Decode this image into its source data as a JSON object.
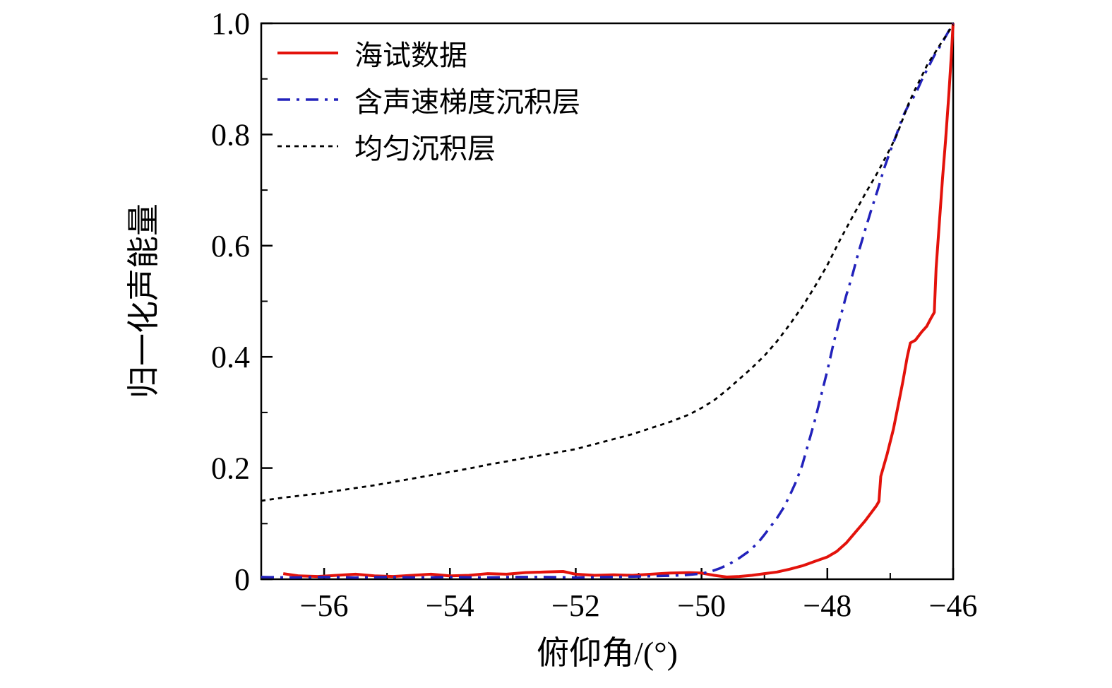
{
  "figure": {
    "background": "#ffffff",
    "axis_color": "#000000"
  },
  "chart_data": {
    "type": "line",
    "title": "",
    "xlabel": "俯仰角/(°)",
    "ylabel": "归一化声能量",
    "xlim": [
      -57,
      -46
    ],
    "ylim": [
      0,
      1
    ],
    "grid": false,
    "legend_position": "top-left",
    "x_ticks": [
      -56,
      -54,
      -52,
      -50,
      -48,
      -46
    ],
    "x_tick_labels": [
      "−56",
      "−54",
      "−52",
      "−50",
      "−48",
      "−46"
    ],
    "x_minor_ticks": [
      -57,
      -55,
      -53,
      -51,
      -49,
      -47
    ],
    "y_ticks": [
      0,
      0.2,
      0.4,
      0.6,
      0.8,
      1.0
    ],
    "y_tick_labels": [
      "0",
      "0.2",
      "0.4",
      "0.6",
      "0.8",
      "1.0"
    ],
    "y_minor_ticks": [
      0.1,
      0.3,
      0.5,
      0.7,
      0.9
    ],
    "series": [
      {
        "name": "海试数据",
        "color": "#e3120b",
        "style": "solid",
        "width": 4,
        "points": [
          [
            -56.65,
            0.01
          ],
          [
            -56.4,
            0.006
          ],
          [
            -56.1,
            0.005
          ],
          [
            -55.8,
            0.007
          ],
          [
            -55.5,
            0.009
          ],
          [
            -55.2,
            0.006
          ],
          [
            -54.9,
            0.005
          ],
          [
            -54.6,
            0.007
          ],
          [
            -54.3,
            0.009
          ],
          [
            -54.0,
            0.006
          ],
          [
            -53.7,
            0.007
          ],
          [
            -53.4,
            0.01
          ],
          [
            -53.1,
            0.009
          ],
          [
            -52.8,
            0.012
          ],
          [
            -52.5,
            0.013
          ],
          [
            -52.2,
            0.014
          ],
          [
            -52.0,
            0.009
          ],
          [
            -51.7,
            0.007
          ],
          [
            -51.4,
            0.008
          ],
          [
            -51.1,
            0.007
          ],
          [
            -50.8,
            0.009
          ],
          [
            -50.5,
            0.011
          ],
          [
            -50.2,
            0.012
          ],
          [
            -50.0,
            0.011
          ],
          [
            -49.8,
            0.007
          ],
          [
            -49.6,
            0.004
          ],
          [
            -49.4,
            0.005
          ],
          [
            -49.2,
            0.007
          ],
          [
            -49.0,
            0.01
          ],
          [
            -48.8,
            0.013
          ],
          [
            -48.6,
            0.018
          ],
          [
            -48.4,
            0.024
          ],
          [
            -48.2,
            0.032
          ],
          [
            -48.0,
            0.04
          ],
          [
            -47.85,
            0.05
          ],
          [
            -47.7,
            0.065
          ],
          [
            -47.55,
            0.085
          ],
          [
            -47.4,
            0.105
          ],
          [
            -47.3,
            0.12
          ],
          [
            -47.22,
            0.132
          ],
          [
            -47.18,
            0.14
          ],
          [
            -47.15,
            0.185
          ],
          [
            -47.05,
            0.225
          ],
          [
            -46.95,
            0.27
          ],
          [
            -46.87,
            0.315
          ],
          [
            -46.8,
            0.355
          ],
          [
            -46.73,
            0.4
          ],
          [
            -46.68,
            0.425
          ],
          [
            -46.6,
            0.43
          ],
          [
            -46.5,
            0.445
          ],
          [
            -46.42,
            0.455
          ],
          [
            -46.35,
            0.47
          ],
          [
            -46.3,
            0.48
          ],
          [
            -46.27,
            0.56
          ],
          [
            -46.22,
            0.64
          ],
          [
            -46.17,
            0.72
          ],
          [
            -46.12,
            0.79
          ],
          [
            -46.07,
            0.87
          ],
          [
            -46.03,
            0.94
          ],
          [
            -46.0,
            1.0
          ]
        ]
      },
      {
        "name": "含声速梯度沉积层",
        "color": "#2222bb",
        "style": "dashdot",
        "width": 3.5,
        "points": [
          [
            -57.0,
            0.004
          ],
          [
            -56.5,
            0.003
          ],
          [
            -56.0,
            0.004
          ],
          [
            -55.5,
            0.003
          ],
          [
            -55.0,
            0.004
          ],
          [
            -54.5,
            0.003
          ],
          [
            -54.0,
            0.004
          ],
          [
            -53.5,
            0.003
          ],
          [
            -53.0,
            0.004
          ],
          [
            -52.5,
            0.004
          ],
          [
            -52.0,
            0.003
          ],
          [
            -51.5,
            0.004
          ],
          [
            -51.0,
            0.005
          ],
          [
            -50.6,
            0.006
          ],
          [
            -50.3,
            0.007
          ],
          [
            -50.0,
            0.01
          ],
          [
            -49.85,
            0.014
          ],
          [
            -49.7,
            0.02
          ],
          [
            -49.55,
            0.028
          ],
          [
            -49.4,
            0.038
          ],
          [
            -49.25,
            0.05
          ],
          [
            -49.1,
            0.066
          ],
          [
            -49.0,
            0.08
          ],
          [
            -48.9,
            0.095
          ],
          [
            -48.8,
            0.11
          ],
          [
            -48.7,
            0.128
          ],
          [
            -48.6,
            0.15
          ],
          [
            -48.5,
            0.175
          ],
          [
            -48.4,
            0.205
          ],
          [
            -48.3,
            0.245
          ],
          [
            -48.2,
            0.285
          ],
          [
            -48.1,
            0.33
          ],
          [
            -48.0,
            0.375
          ],
          [
            -47.9,
            0.425
          ],
          [
            -47.8,
            0.468
          ],
          [
            -47.7,
            0.51
          ],
          [
            -47.6,
            0.548
          ],
          [
            -47.5,
            0.59
          ],
          [
            -47.4,
            0.628
          ],
          [
            -47.3,
            0.665
          ],
          [
            -47.2,
            0.7
          ],
          [
            -47.1,
            0.738
          ],
          [
            -47.0,
            0.77
          ],
          [
            -46.9,
            0.8
          ],
          [
            -46.8,
            0.832
          ],
          [
            -46.7,
            0.855
          ],
          [
            -46.6,
            0.872
          ],
          [
            -46.5,
            0.898
          ],
          [
            -46.4,
            0.92
          ],
          [
            -46.3,
            0.942
          ],
          [
            -46.2,
            0.96
          ],
          [
            -46.1,
            0.98
          ],
          [
            -46.0,
            1.0
          ]
        ]
      },
      {
        "name": "均匀沉积层",
        "color": "#000000",
        "style": "dashed",
        "width": 2.8,
        "points": [
          [
            -57.0,
            0.141
          ],
          [
            -56.7,
            0.146
          ],
          [
            -56.4,
            0.15
          ],
          [
            -56.1,
            0.154
          ],
          [
            -55.8,
            0.159
          ],
          [
            -55.5,
            0.164
          ],
          [
            -55.2,
            0.169
          ],
          [
            -54.9,
            0.175
          ],
          [
            -54.6,
            0.181
          ],
          [
            -54.3,
            0.187
          ],
          [
            -54.0,
            0.193
          ],
          [
            -53.7,
            0.199
          ],
          [
            -53.4,
            0.206
          ],
          [
            -53.1,
            0.212
          ],
          [
            -52.8,
            0.218
          ],
          [
            -52.5,
            0.224
          ],
          [
            -52.2,
            0.23
          ],
          [
            -52.0,
            0.234
          ],
          [
            -51.7,
            0.243
          ],
          [
            -51.4,
            0.252
          ],
          [
            -51.1,
            0.261
          ],
          [
            -50.8,
            0.272
          ],
          [
            -50.5,
            0.283
          ],
          [
            -50.2,
            0.296
          ],
          [
            -50.0,
            0.308
          ],
          [
            -49.8,
            0.322
          ],
          [
            -49.6,
            0.34
          ],
          [
            -49.4,
            0.36
          ],
          [
            -49.2,
            0.38
          ],
          [
            -49.0,
            0.402
          ],
          [
            -48.8,
            0.428
          ],
          [
            -48.6,
            0.458
          ],
          [
            -48.4,
            0.49
          ],
          [
            -48.2,
            0.526
          ],
          [
            -48.0,
            0.565
          ],
          [
            -47.8,
            0.61
          ],
          [
            -47.6,
            0.652
          ],
          [
            -47.4,
            0.693
          ],
          [
            -47.2,
            0.732
          ],
          [
            -47.0,
            0.775
          ],
          [
            -46.9,
            0.798
          ],
          [
            -46.8,
            0.828
          ],
          [
            -46.7,
            0.858
          ],
          [
            -46.6,
            0.882
          ],
          [
            -46.5,
            0.905
          ],
          [
            -46.4,
            0.928
          ],
          [
            -46.3,
            0.945
          ],
          [
            -46.2,
            0.963
          ],
          [
            -46.1,
            0.98
          ],
          [
            -46.0,
            0.998
          ]
        ]
      }
    ]
  }
}
